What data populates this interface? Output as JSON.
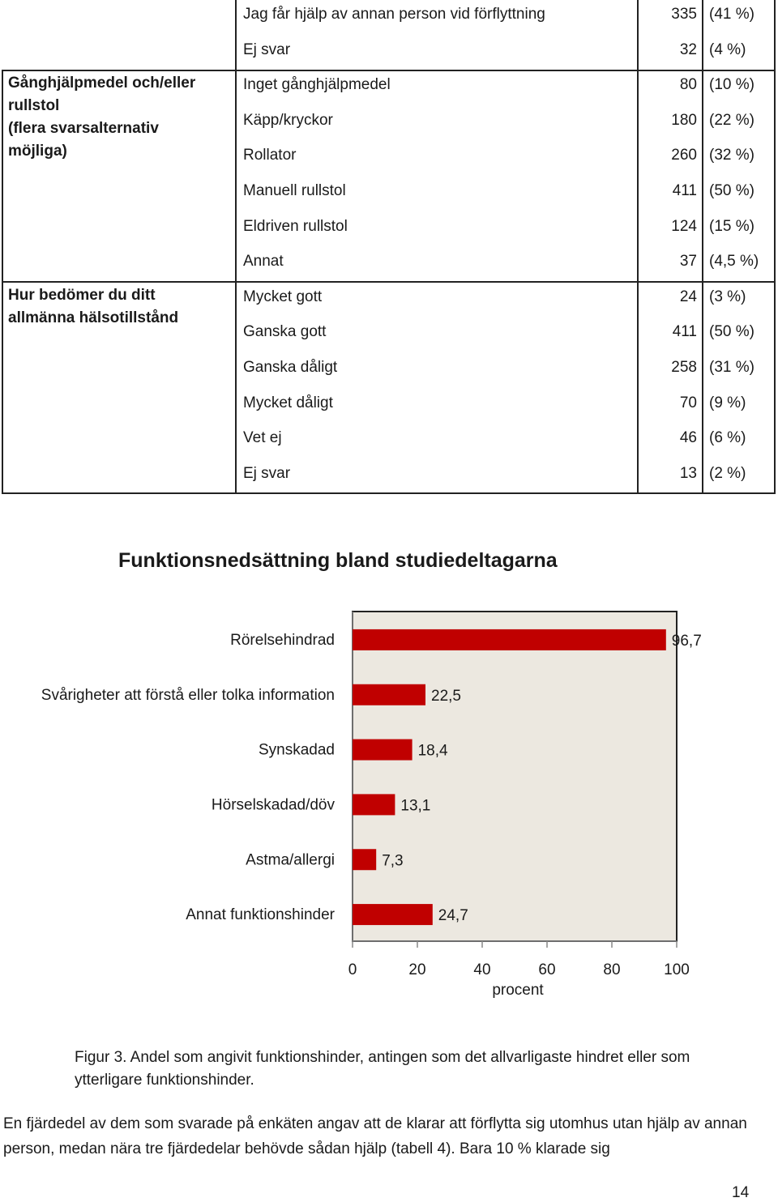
{
  "table": {
    "rows": [
      {
        "label": "Jag får hjälp av annan person vid förflyttning",
        "count": "335",
        "pct": "(41 %)"
      },
      {
        "label": "Ej svar",
        "count": "32",
        "pct": "(4 %)"
      },
      {
        "label": "Inget gånghjälpmedel",
        "count": "80",
        "pct": "(10 %)"
      },
      {
        "label": "Käpp/kryckor",
        "count": "180",
        "pct": "(22 %)"
      },
      {
        "label": "Rollator",
        "count": "260",
        "pct": "(32 %)"
      },
      {
        "label": "Manuell rullstol",
        "count": "411",
        "pct": "(50 %)"
      },
      {
        "label": "Eldriven rullstol",
        "count": "124",
        "pct": "(15 %)"
      },
      {
        "label": "Annat",
        "count": "37",
        "pct": "(4,5 %)"
      },
      {
        "label": "Mycket gott",
        "count": "24",
        "pct": "(3 %)"
      },
      {
        "label": "Ganska gott",
        "count": "411",
        "pct": "(50 %)"
      },
      {
        "label": "Ganska dåligt",
        "count": "258",
        "pct": "(31 %)"
      },
      {
        "label": "Mycket dåligt",
        "count": "70",
        "pct": "(9 %)"
      },
      {
        "label": "Vet ej",
        "count": "46",
        "pct": "(6 %)"
      },
      {
        "label": "Ej svar",
        "count": "13",
        "pct": "(2 %)"
      }
    ],
    "groups": [
      {
        "label": "Gånghjälpmedel och/eller\nrullstol\n(flera svarsalternativ\nmöjliga)"
      },
      {
        "label": "Hur bedömer du ditt\nallmänna hälsotillstånd"
      }
    ]
  },
  "chart_data": {
    "type": "bar",
    "orientation": "horizontal",
    "title": "Funktionsnedsättning bland studiedeltagarna",
    "categories": [
      "Rörelsehindrad",
      "Svårigheter att förstå eller tolka information",
      "Synskadad",
      "Hörselskadad/döv",
      "Astma/allergi",
      "Annat funktionshinder"
    ],
    "values": [
      96.7,
      22.5,
      18.4,
      13.1,
      7.3,
      24.7
    ],
    "value_labels": [
      "96,7",
      "22,5",
      "18,4",
      "13,1",
      "7,3",
      "24,7"
    ],
    "xlabel": "procent",
    "xlim": [
      0,
      100
    ],
    "xticks": [
      "0",
      "20",
      "40",
      "60",
      "80",
      "100"
    ],
    "grid": false,
    "colors": {
      "bar": "#c00000",
      "plot_bg": "#ece8e0",
      "frame": "#222222"
    }
  },
  "caption": "Figur 3. Andel som angivit funktionshinder, antingen som det allvarligaste hindret eller som ytterligare funktionshinder.",
  "body_text": "En fjärdedel av dem som svarade på enkäten angav att de klarar att förflytta sig utomhus utan hjälp av annan person, medan nära tre fjärdedelar behövde sådan hjälp (tabell 4). Bara 10 % klarade sig",
  "page_number": "14"
}
